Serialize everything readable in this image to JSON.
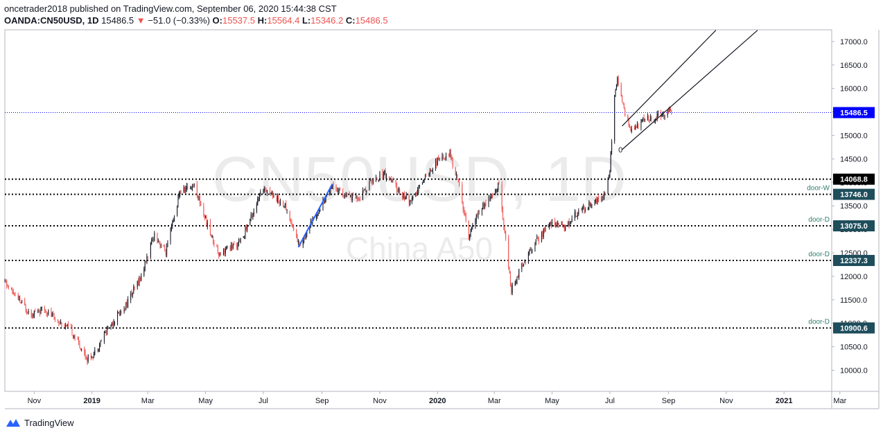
{
  "header": {
    "publisher": "oncetrader2018 published on TradingView.com, September 06, 2020 15:44:38 CST",
    "symbol": "OANDA:CN50USD, 1D",
    "last": "15486.5",
    "arrow": "▼",
    "change": "−51.0 (−0.33%)",
    "o_label": "O:",
    "o_val": "15537.5",
    "h_label": "H:",
    "h_val": "15564.4",
    "l_label": "L:",
    "l_val": "15346.2",
    "c_label": "C:",
    "c_val": "15486.5"
  },
  "watermark": {
    "main": "CN50USD, 1D",
    "sub": "China A50"
  },
  "footer": {
    "brand": "TradingView"
  },
  "colors": {
    "up": "#131722",
    "down": "#ef5350",
    "accent": "#2962ff",
    "level_bg": "#1e4d5b",
    "current_bg": "#0000ff"
  },
  "chart_data": {
    "type": "candlestick",
    "x_ticks": [
      "Nov",
      "2019",
      "Mar",
      "May",
      "Jul",
      "Sep",
      "Nov",
      "2020",
      "Mar",
      "May",
      "Jul",
      "Sep",
      "Nov",
      "2021",
      "Mar"
    ],
    "y_ticks": [
      17000,
      16500,
      16000,
      15500,
      15000,
      14500,
      14000,
      13500,
      13000,
      12500,
      12000,
      11500,
      11000,
      10500,
      10000
    ],
    "ylim": [
      9550,
      17250
    ],
    "current_price": {
      "label": "15486.5",
      "value": 15486.5
    },
    "levels": [
      {
        "price": 14068.8,
        "label": "14068.8",
        "name": "",
        "style": "black"
      },
      {
        "price": 13746.0,
        "label": "13746.0",
        "name": "door-W",
        "style": "teal"
      },
      {
        "price": 13075.0,
        "label": "13075.0",
        "name": "door-D",
        "style": "teal"
      },
      {
        "price": 12337.3,
        "label": "12337.3",
        "name": "door-D",
        "style": "teal"
      },
      {
        "price": 10900.6,
        "label": "10900.6",
        "name": "door-D",
        "style": "teal"
      }
    ],
    "annotation": "0",
    "anchors": [
      {
        "date": "2018-10-01",
        "price": 11870
      },
      {
        "date": "2018-10-15",
        "price": 11500
      },
      {
        "date": "2018-10-29",
        "price": 11200
      },
      {
        "date": "2018-11-12",
        "price": 11300
      },
      {
        "date": "2018-11-26",
        "price": 11050
      },
      {
        "date": "2018-12-10",
        "price": 10850
      },
      {
        "date": "2018-12-27",
        "price": 10250
      },
      {
        "date": "2019-01-03",
        "price": 10350
      },
      {
        "date": "2019-01-18",
        "price": 10900
      },
      {
        "date": "2019-02-06",
        "price": 11400
      },
      {
        "date": "2019-02-22",
        "price": 12000
      },
      {
        "date": "2019-03-08",
        "price": 12900
      },
      {
        "date": "2019-03-20",
        "price": 12500
      },
      {
        "date": "2019-04-04",
        "price": 13800
      },
      {
        "date": "2019-04-19",
        "price": 13950
      },
      {
        "date": "2019-05-06",
        "price": 12900
      },
      {
        "date": "2019-05-15",
        "price": 12500
      },
      {
        "date": "2019-06-06",
        "price": 12700
      },
      {
        "date": "2019-06-25",
        "price": 13600
      },
      {
        "date": "2019-07-02",
        "price": 13900
      },
      {
        "date": "2019-07-24",
        "price": 13500
      },
      {
        "date": "2019-08-08",
        "price": 12650
      },
      {
        "date": "2019-08-28",
        "price": 13400
      },
      {
        "date": "2019-09-12",
        "price": 13950
      },
      {
        "date": "2019-09-26",
        "price": 13700
      },
      {
        "date": "2019-10-10",
        "price": 13650
      },
      {
        "date": "2019-10-22",
        "price": 14000
      },
      {
        "date": "2019-11-06",
        "price": 14200
      },
      {
        "date": "2019-11-20",
        "price": 13850
      },
      {
        "date": "2019-12-04",
        "price": 13550
      },
      {
        "date": "2019-12-18",
        "price": 14100
      },
      {
        "date": "2020-01-03",
        "price": 14500
      },
      {
        "date": "2020-01-14",
        "price": 14600
      },
      {
        "date": "2020-01-23",
        "price": 14000
      },
      {
        "date": "2020-02-03",
        "price": 12850
      },
      {
        "date": "2020-02-14",
        "price": 13400
      },
      {
        "date": "2020-02-28",
        "price": 13700
      },
      {
        "date": "2020-03-06",
        "price": 13950
      },
      {
        "date": "2020-03-19",
        "price": 11700
      },
      {
        "date": "2020-03-30",
        "price": 12250
      },
      {
        "date": "2020-04-15",
        "price": 12750
      },
      {
        "date": "2020-04-30",
        "price": 13150
      },
      {
        "date": "2020-05-15",
        "price": 13050
      },
      {
        "date": "2020-05-27",
        "price": 13350
      },
      {
        "date": "2020-06-10",
        "price": 13550
      },
      {
        "date": "2020-06-24",
        "price": 13650
      },
      {
        "date": "2020-07-01",
        "price": 14250
      },
      {
        "date": "2020-07-06",
        "price": 15900
      },
      {
        "date": "2020-07-09",
        "price": 16250
      },
      {
        "date": "2020-07-16",
        "price": 15500
      },
      {
        "date": "2020-07-24",
        "price": 15100
      },
      {
        "date": "2020-08-05",
        "price": 15300
      },
      {
        "date": "2020-08-21",
        "price": 15400
      },
      {
        "date": "2020-09-02",
        "price": 15550
      },
      {
        "date": "2020-09-04",
        "price": 15486
      }
    ],
    "trendlines": [
      {
        "from": {
          "date": "2019-08-07",
          "price": 12620
        },
        "to": {
          "date": "2019-09-12",
          "price": 13970
        },
        "color": "blue"
      },
      {
        "from": {
          "date": "2020-07-14",
          "price": 14700
        },
        "to": {
          "date": "2020-12-04",
          "price": 17240
        },
        "color": "black"
      },
      {
        "from": {
          "date": "2020-07-14",
          "price": 15200
        },
        "to": {
          "date": "2020-10-21",
          "price": 17240
        },
        "color": "black"
      }
    ]
  }
}
